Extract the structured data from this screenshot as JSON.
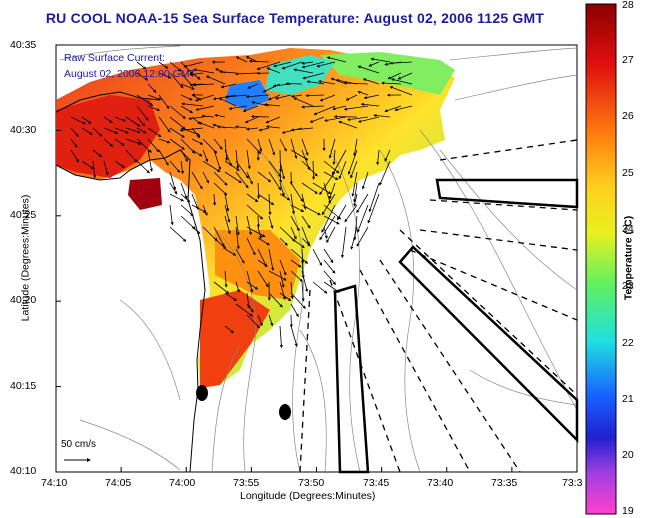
{
  "title": "RU COOL  NOAA-15  Sea Surface Temperature:  August 02, 2006 1125 GMT",
  "overlay": {
    "line1": "Raw Surface Current:",
    "line2": "August 02, 2006 12:00 GMT"
  },
  "axes": {
    "xlabel": "Longitude (Degrees:Minutes)",
    "ylabel": "Latitude (Degrees:Minutes)",
    "x_ticks": [
      "74:10",
      "74:05",
      "74:00",
      "73:55",
      "73:50",
      "73:45",
      "73:40",
      "73:35",
      "73:3"
    ],
    "y_ticks": [
      "40:35",
      "40:30",
      "40:25",
      "40:20",
      "40:15",
      "40:10"
    ]
  },
  "colorbar": {
    "label": "Temperature (°C)",
    "ticks": [
      "28",
      "27",
      "26",
      "25",
      "24",
      "23",
      "22",
      "21",
      "20",
      "19"
    ],
    "min": 19,
    "max": 28
  },
  "scale": {
    "label": "50 cm/s"
  },
  "colors": {
    "title": "#1a1aa6",
    "land": "#ffffff"
  }
}
